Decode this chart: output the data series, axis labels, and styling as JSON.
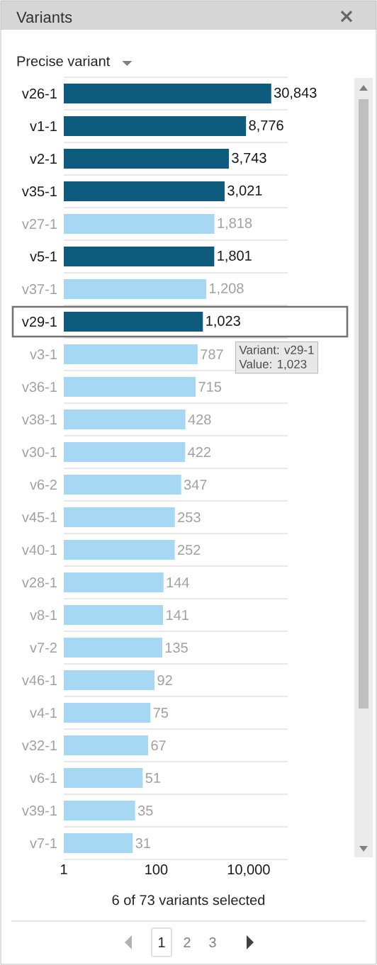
{
  "chart_data": {
    "type": "bar",
    "orientation": "horizontal",
    "title": "Variants",
    "subtitle": "Precise variant",
    "categories": [
      "v26-1",
      "v1-1",
      "v2-1",
      "v35-1",
      "v27-1",
      "v5-1",
      "v37-1",
      "v29-1",
      "v3-1",
      "v36-1",
      "v38-1",
      "v30-1",
      "v6-2",
      "v45-1",
      "v40-1",
      "v28-1",
      "v8-1",
      "v7-2",
      "v46-1",
      "v4-1",
      "v32-1",
      "v6-1",
      "v39-1",
      "v7-1"
    ],
    "values": [
      30843,
      8776,
      3743,
      3021,
      1818,
      1801,
      1208,
      1023,
      787,
      715,
      428,
      422,
      347,
      253,
      252,
      144,
      141,
      135,
      92,
      75,
      67,
      51,
      35,
      31
    ],
    "colors": [
      "#0e5b7e",
      "#0e5b7e",
      "#0e5b7e",
      "#0e5b7e",
      "#a7d8f3",
      "#0e5b7e",
      "#a7d8f3",
      "#0e5b7e",
      "#a7d8f3",
      "#a7d8f3",
      "#a7d8f3",
      "#a7d8f3",
      "#a7d8f3",
      "#a7d8f3",
      "#a7d8f3",
      "#a7d8f3",
      "#a7d8f3",
      "#a7d8f3",
      "#a7d8f3",
      "#a7d8f3",
      "#a7d8f3",
      "#a7d8f3",
      "#a7d8f3",
      "#a7d8f3"
    ],
    "value_labels": [
      "30,843",
      "8,776",
      "3,743",
      "3,021",
      "1,818",
      "1,801",
      "1,208",
      "1,023",
      "787",
      "715",
      "428",
      "422",
      "347",
      "253",
      "252",
      "144",
      "141",
      "135",
      "92",
      "75",
      "67",
      "51",
      "35",
      "31"
    ],
    "log": "x",
    "xlim": [
      1,
      70000
    ],
    "xticks": [
      1,
      100,
      {
        "value": 10000,
        "label": "10,000"
      }
    ],
    "grid": "y",
    "annotations": [
      "6 of 73 variants selected",
      "Variant: v29-1",
      "Value: 1,023",
      "1",
      "2",
      "3"
    ]
  }
}
